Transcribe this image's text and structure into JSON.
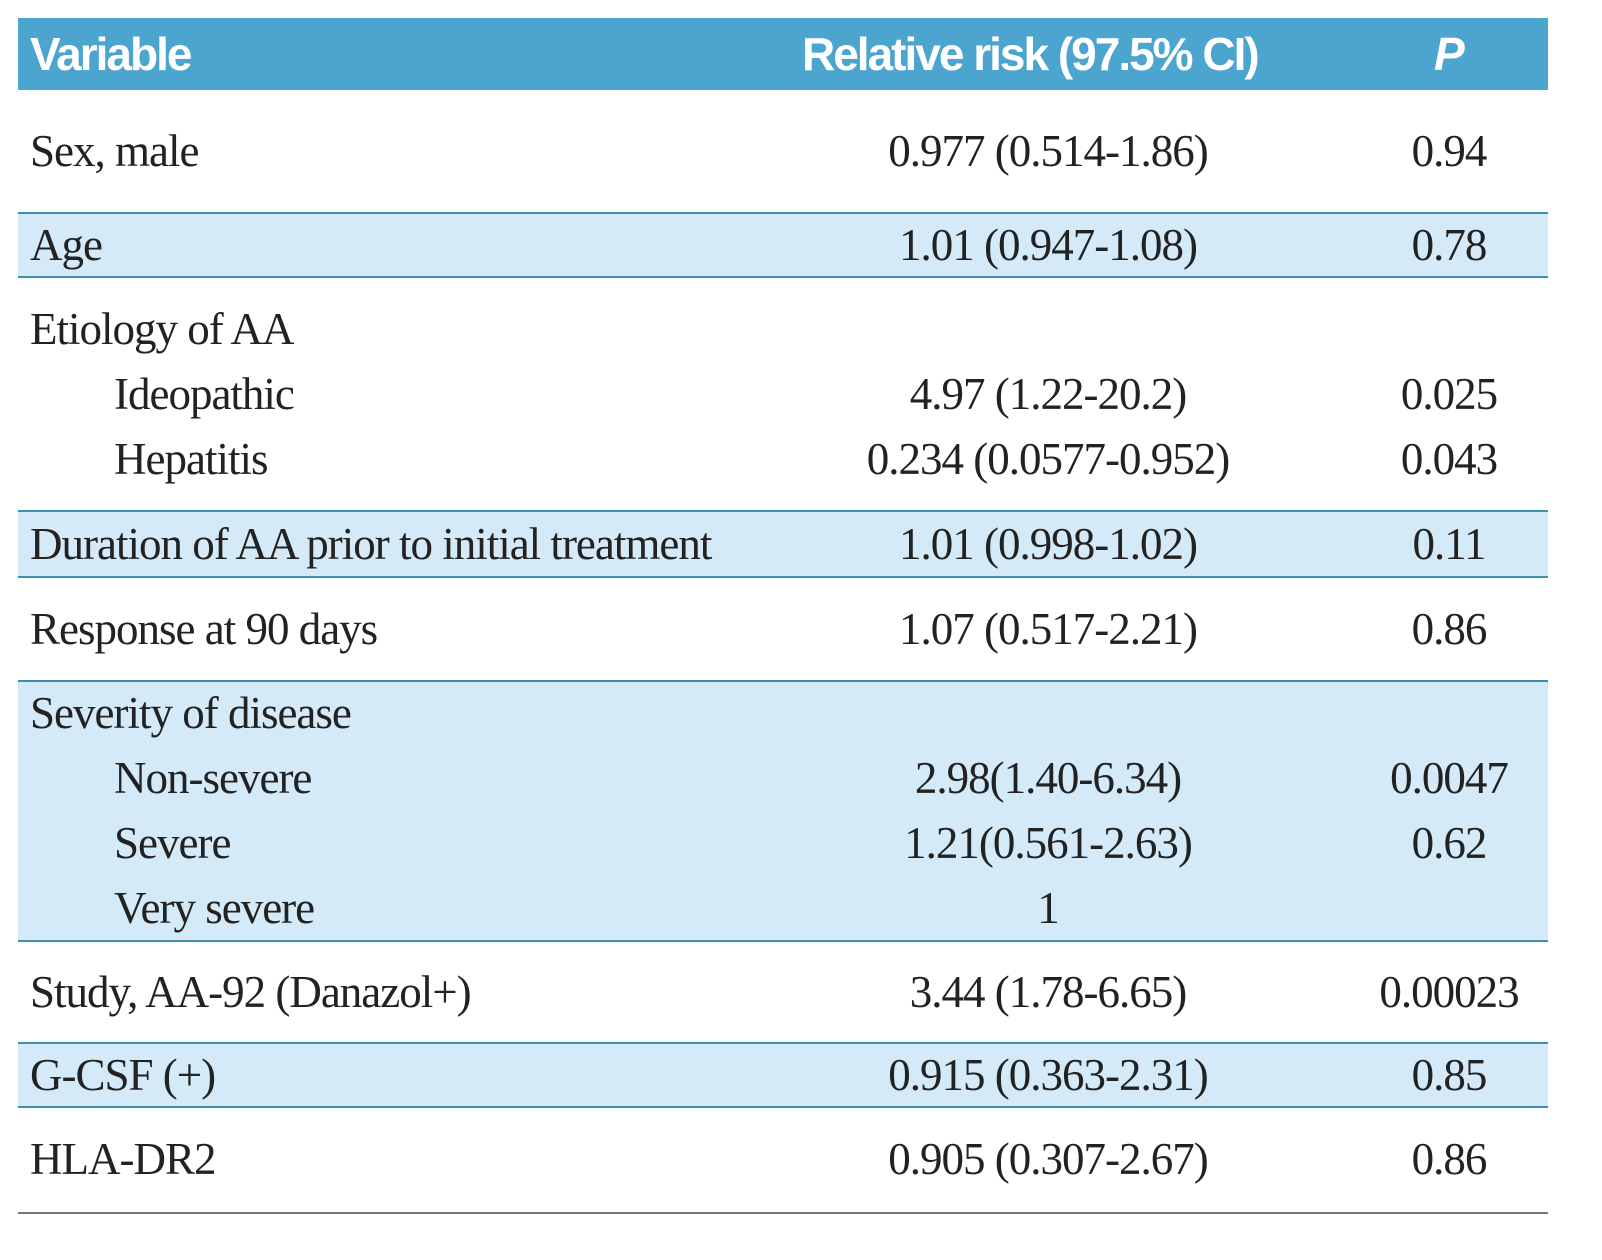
{
  "table": {
    "header": [
      "Variable",
      "Relative risk (97.5% CI)",
      "P"
    ],
    "groups": [
      {
        "rows": [
          [
            "Sex, male",
            "0.977 (0.514-1.86)",
            "0.94"
          ]
        ]
      },
      {
        "rows": [
          [
            "Age",
            "1.01 (0.947-1.08)",
            "0.78"
          ]
        ]
      },
      {
        "rows": [
          [
            "Etiology of AA"
          ],
          [
            "Ideopathic",
            "4.97 (1.22-20.2)",
            "0.025"
          ],
          [
            "Hepatitis",
            "0.234 (0.0577-0.952)",
            "0.043"
          ]
        ]
      },
      {
        "rows": [
          [
            "Duration of AA prior to initial treatment",
            "1.01 (0.998-1.02)",
            "0.11"
          ]
        ]
      },
      {
        "rows": [
          [
            "Response at 90 days",
            "1.07 (0.517-2.21)",
            "0.86"
          ]
        ]
      },
      {
        "rows": [
          [
            "Severity of disease"
          ],
          [
            "Non-severe",
            "2.98(1.40-6.34)",
            "0.0047"
          ],
          [
            "Severe",
            "1.21(0.561-2.63)",
            "0.62"
          ],
          [
            "Very severe",
            "1"
          ]
        ]
      },
      {
        "rows": [
          [
            "Study, AA-92 (Danazol+)",
            "3.44 (1.78-6.65)",
            "0.00023"
          ]
        ]
      },
      {
        "rows": [
          [
            "G-CSF (+)",
            "0.915 (0.363-2.31)",
            "0.85"
          ]
        ]
      },
      {
        "rows": [
          [
            "HLA-DR2",
            "0.905 (0.307-2.67)",
            "0.86"
          ]
        ]
      }
    ]
  }
}
